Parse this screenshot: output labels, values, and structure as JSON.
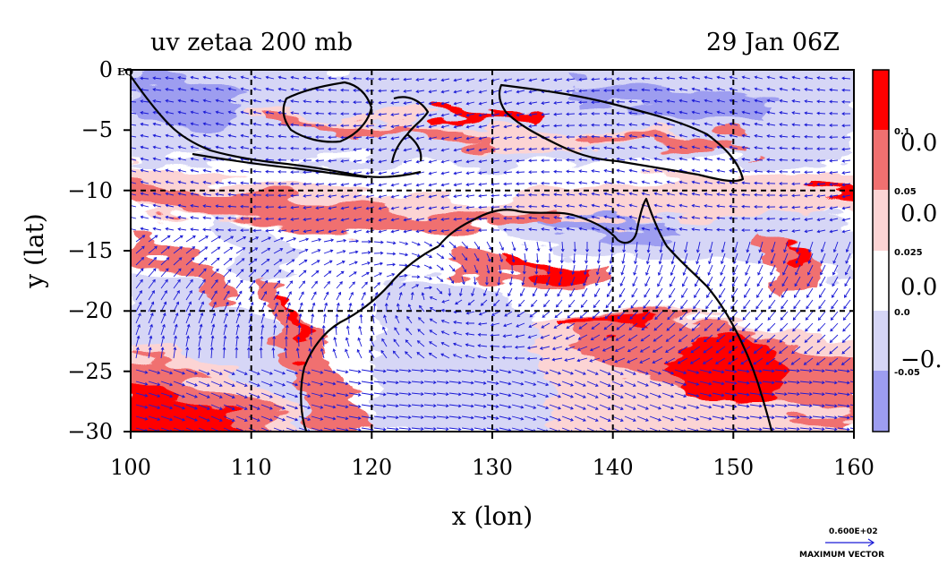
{
  "title_left": "uv zetaa 200 mb",
  "title_right": "29 Jan 06Z",
  "equator_label": "EQ",
  "xlabel": "x (lon)",
  "ylabel": "y (lat)",
  "x_ticks": [
    "100",
    "110",
    "120",
    "130",
    "140",
    "150",
    "160"
  ],
  "y_ticks": [
    "0",
    "−5",
    "−10",
    "−15",
    "−20",
    "−25",
    "−30"
  ],
  "colorbar": {
    "small_labels": [
      "0.1",
      "0.05",
      "0.025",
      "0.0",
      "-0.05"
    ],
    "big_labels": [
      "0.0",
      "0.0",
      "0.0",
      "−0."
    ],
    "colors": [
      "#ff0000",
      "#f07070",
      "#fcd4d4",
      "#ffffff",
      "#d6d6f6",
      "#9d9df0"
    ]
  },
  "vector_key": {
    "value": "0.600E+02",
    "label": "MAXIMUM VECTOR"
  },
  "colors": {
    "strong_positive": "#ff0000",
    "positive": "#f07070",
    "weak_positive": "#fcd4d4",
    "weak_negative": "#d6d6f6",
    "negative": "#9d9df0",
    "vectors": "#1a1ad6",
    "coastline": "#000000",
    "gridline": "#000000"
  },
  "chart_data": {
    "type": "heatmap",
    "title": "uv zetaa 200 mb",
    "subtitle": "29 Jan 06Z",
    "xlabel": "x (lon)",
    "ylabel": "y (lat)",
    "xlim": [
      100,
      160
    ],
    "ylim": [
      -30,
      0
    ],
    "x_ticks": [
      100,
      110,
      120,
      130,
      140,
      150,
      160
    ],
    "y_ticks": [
      0,
      -5,
      -10,
      -15,
      -20,
      -25,
      -30
    ],
    "grid": true,
    "legend": "right colorbar",
    "contour_levels": [
      0.1,
      0.05,
      0.025,
      0.0,
      -0.05
    ],
    "vector_reference": 60
  }
}
